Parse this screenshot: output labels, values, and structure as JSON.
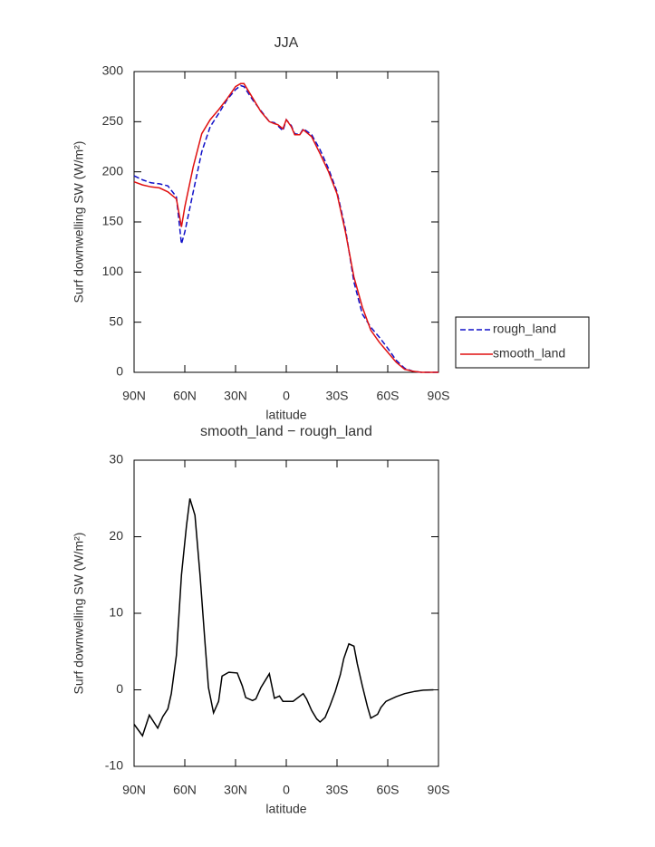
{
  "chart_data": [
    {
      "type": "line",
      "title": "JJA",
      "xlabel": "latitude",
      "ylabel": "Surf downwelling SW (W/m²)",
      "x": [
        90,
        85,
        80,
        75,
        70,
        65,
        62,
        60,
        55,
        50,
        45,
        40,
        35,
        30,
        27,
        25,
        20,
        15,
        10,
        7,
        5,
        2,
        0,
        -3,
        -5,
        -8,
        -10,
        -15,
        -20,
        -25,
        -30,
        -35,
        -40,
        -45,
        -50,
        -55,
        -60,
        -65,
        -70,
        -75,
        -80,
        -85,
        -90
      ],
      "series": [
        {
          "name": "rough_land",
          "color": "#1010c8",
          "linestyle": "dashed",
          "values": [
            196,
            192,
            189,
            188,
            186,
            175,
            128,
            140,
            180,
            220,
            245,
            258,
            272,
            282,
            286,
            285,
            272,
            261,
            250,
            249,
            246,
            241,
            252,
            246,
            238,
            237,
            243,
            237,
            222,
            203,
            180,
            143,
            90,
            58,
            45,
            35,
            24,
            12,
            4,
            1,
            0,
            0,
            0
          ]
        },
        {
          "name": "smooth_land",
          "color": "#e01010",
          "linestyle": "solid",
          "values": [
            190,
            187,
            185,
            184,
            180,
            173,
            145,
            165,
            205,
            238,
            252,
            262,
            273,
            285,
            288,
            288,
            274,
            260,
            250,
            248,
            247,
            243,
            252,
            245,
            237,
            237,
            242,
            235,
            218,
            200,
            178,
            140,
            95,
            65,
            42,
            30,
            20,
            10,
            3,
            1,
            0,
            0,
            0
          ]
        }
      ],
      "xlim": [
        90,
        -90
      ],
      "xticks": [
        {
          "value": 90,
          "label": "90N"
        },
        {
          "value": 60,
          "label": "60N"
        },
        {
          "value": 30,
          "label": "30N"
        },
        0,
        {
          "value": -30,
          "label": "30S"
        },
        {
          "value": -60,
          "label": "60S"
        },
        {
          "value": -90,
          "label": "90S"
        }
      ],
      "ylim": [
        0,
        300
      ],
      "yticks": [
        0,
        50,
        100,
        150,
        200,
        250,
        300
      ],
      "legend": "outside-right"
    },
    {
      "type": "line",
      "title": "smooth_land − rough_land",
      "xlabel": "latitude",
      "ylabel": "Surf downwelling SW (W/m²)",
      "x": [
        90,
        85,
        81,
        76,
        73,
        70,
        68,
        65,
        62,
        59,
        57,
        54,
        51,
        48,
        46,
        43,
        40,
        38,
        34,
        29,
        26,
        24,
        20,
        18,
        15,
        10,
        7,
        4,
        2,
        -4,
        -10,
        -12,
        -15,
        -18,
        -20,
        -23,
        -26,
        -29,
        -32,
        -34,
        -37,
        -40,
        -42,
        -45,
        -48,
        -50,
        -54,
        -56,
        -59,
        -65,
        -70,
        -76,
        -81,
        -87
      ],
      "color": "#000000",
      "values": [
        -4.5,
        -6,
        -3.3,
        -5,
        -3.5,
        -2.5,
        -0.5,
        4.5,
        15,
        21.5,
        25,
        22.8,
        15,
        6,
        0.3,
        -3,
        -1.5,
        1.8,
        2.3,
        2.2,
        0.5,
        -1,
        -1.4,
        -1.2,
        0.3,
        2.1,
        -1.1,
        -0.8,
        -1.5,
        -1.5,
        -0.5,
        -1.2,
        -2.7,
        -3.8,
        -4.2,
        -3.6,
        -2,
        -0.2,
        2,
        4.1,
        6,
        5.7,
        3.4,
        0.5,
        -2.2,
        -3.7,
        -3.2,
        -2.3,
        -1.5,
        -0.9,
        -0.5,
        -0.2,
        -0.05,
        0
      ],
      "xlim": [
        90,
        -90
      ],
      "xticks": [
        {
          "value": 90,
          "label": "90N"
        },
        {
          "value": 60,
          "label": "60N"
        },
        {
          "value": 30,
          "label": "30N"
        },
        0,
        {
          "value": -30,
          "label": "30S"
        },
        {
          "value": -60,
          "label": "60S"
        },
        {
          "value": -90,
          "label": "90S"
        }
      ],
      "ylim": [
        -10,
        30
      ],
      "yticks": [
        -10,
        0,
        10,
        20,
        30
      ]
    }
  ]
}
